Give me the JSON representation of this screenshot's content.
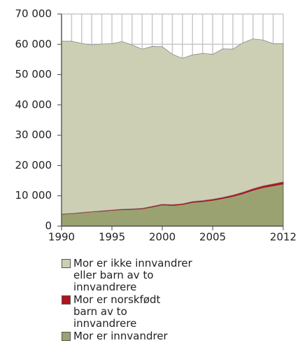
{
  "chart_data": {
    "type": "stacked_area",
    "x": [
      1990,
      1991,
      1992,
      1993,
      1994,
      1995,
      1996,
      1997,
      1998,
      1999,
      2000,
      2001,
      2002,
      2003,
      2004,
      2005,
      2006,
      2007,
      2008,
      2009,
      2010,
      2011,
      2012
    ],
    "series": [
      {
        "name": "Mor er innvandrer",
        "color": "#9aa272",
        "values": [
          3900,
          4100,
          4400,
          4700,
          4900,
          5200,
          5400,
          5500,
          5700,
          6300,
          7000,
          6800,
          7100,
          7800,
          8100,
          8500,
          9100,
          9800,
          10700,
          11800,
          12700,
          13300,
          13900
        ]
      },
      {
        "name": "Mor er norskfødt barn av to innvandrere",
        "color": "#b0141c",
        "values": [
          100,
          100,
          100,
          100,
          150,
          150,
          200,
          200,
          200,
          250,
          250,
          300,
          300,
          350,
          350,
          400,
          400,
          450,
          500,
          550,
          600,
          650,
          700
        ]
      },
      {
        "name": "Mor er ikke innvandrer eller barn av to innvandrere",
        "color": "#cdcfb5",
        "values": [
          57000,
          56800,
          55800,
          55000,
          55050,
          54850,
          55300,
          54100,
          52500,
          52750,
          51950,
          49600,
          48000,
          48350,
          48550,
          47800,
          49000,
          48150,
          49300,
          49450,
          48100,
          46250,
          45600
        ]
      }
    ],
    "xlim": [
      1990,
      2012
    ],
    "xticks": [
      1990,
      1995,
      2000,
      2005,
      2012
    ],
    "ylim": [
      0,
      70000
    ],
    "yticks": [
      0,
      {
        "value": 10000,
        "label": "10 000"
      },
      {
        "value": 20000,
        "label": "20 000"
      },
      {
        "value": 30000,
        "label": "30 000"
      },
      {
        "value": 40000,
        "label": "40 000"
      },
      {
        "value": 50000,
        "label": "50 000"
      },
      {
        "value": 60000,
        "label": "60 000"
      },
      {
        "value": 70000,
        "label": "70 000"
      }
    ],
    "grid": true
  }
}
